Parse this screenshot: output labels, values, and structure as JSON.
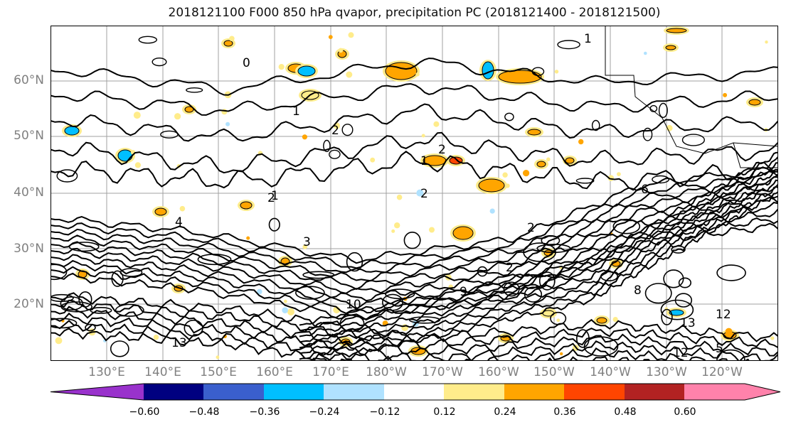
{
  "title": "2018121100 F000 850 hPa qvapor, precipitation PC (2018121400 - 2018121500)",
  "map": {
    "lat_labels": [
      "60°N",
      "50°N",
      "40°N",
      "30°N",
      "20°N"
    ],
    "lat_values": [
      60,
      50,
      40,
      30,
      20
    ],
    "lon_labels": [
      "130°E",
      "140°E",
      "150°E",
      "160°E",
      "170°E",
      "180°W",
      "170°W",
      "160°W",
      "150°W",
      "140°W",
      "130°W",
      "120°W"
    ],
    "contour_labels": [
      "1",
      "0",
      "1",
      "2",
      "1",
      "2",
      "2",
      "1",
      "2",
      "4",
      "2",
      "3",
      "2",
      "6",
      "8",
      "12",
      "13",
      "10",
      "9",
      "13",
      "12",
      "5"
    ],
    "contour_color": "#000000",
    "grid_color": "#a0a0a0"
  },
  "colorbar": {
    "colors": [
      "#9932cc",
      "#000080",
      "#3a5fcd",
      "#00bfff",
      "#b0e2ff",
      "#ffffff",
      "#ffec8b",
      "#ffa500",
      "#ff4500",
      "#b22222",
      "#ff82ab",
      "#ff82ab"
    ],
    "tick_labels": [
      "−0.60",
      "−0.48",
      "−0.36",
      "−0.24",
      "−0.12",
      "0.12",
      "0.24",
      "0.36",
      "0.48",
      "0.60"
    ],
    "tick_values": [
      -0.6,
      -0.48,
      -0.36,
      -0.24,
      -0.12,
      0.12,
      0.24,
      0.36,
      0.48,
      0.6
    ]
  }
}
